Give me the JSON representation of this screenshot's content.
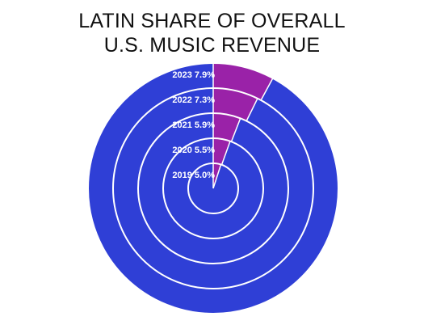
{
  "chart_data": {
    "type": "pie",
    "subtype": "nested-rings",
    "title_line1": "LATIN SHARE OF OVERALL",
    "title_line2": "U.S. MUSIC REVENUE",
    "series": [
      {
        "year": "2019",
        "label": "2019 5.0%",
        "value": 5.0
      },
      {
        "year": "2020",
        "label": "2020 5.5%",
        "value": 5.5
      },
      {
        "year": "2021",
        "label": "2021 5.9%",
        "value": 5.9
      },
      {
        "year": "2022",
        "label": "2022 7.3%",
        "value": 7.3
      },
      {
        "year": "2023",
        "label": "2023 7.9%",
        "value": 7.9
      }
    ],
    "unit": "%",
    "colors": {
      "share": "#9a22a8",
      "rest": "#2f3fd6",
      "separator": "#ffffff"
    }
  }
}
